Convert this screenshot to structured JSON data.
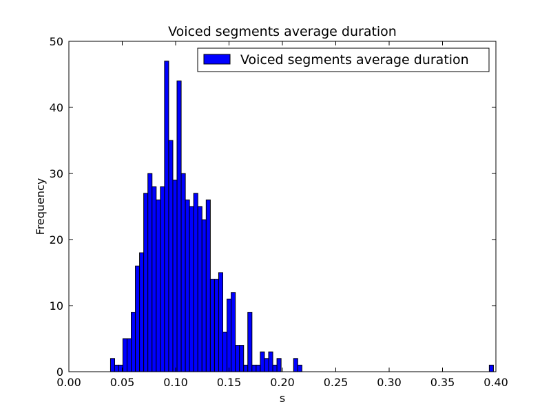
{
  "chart_data": {
    "type": "bar",
    "title": "Voiced segments average duration",
    "xlabel": "s",
    "ylabel": "Frequency",
    "xlim": [
      0.0,
      0.4
    ],
    "ylim": [
      0,
      50
    ],
    "x_ticks": [
      "0.00",
      "0.05",
      "0.10",
      "0.15",
      "0.20",
      "0.25",
      "0.30",
      "0.35",
      "0.40"
    ],
    "y_ticks": [
      "0",
      "10",
      "20",
      "30",
      "40",
      "50"
    ],
    "grid": false,
    "legend_position": "top-right",
    "bar_color": "#0000ff",
    "series": [
      {
        "name": "Voiced segments average duration",
        "bin_edges": [
          0.039,
          0.0428,
          0.0467,
          0.0506,
          0.0545,
          0.0584,
          0.0623,
          0.0662,
          0.0701,
          0.074,
          0.0779,
          0.0818,
          0.0857,
          0.0896,
          0.0935,
          0.0974,
          0.1013,
          0.1052,
          0.1091,
          0.113,
          0.1169,
          0.1208,
          0.1247,
          0.1286,
          0.1325,
          0.1364,
          0.1403,
          0.1442,
          0.1481,
          0.152,
          0.1559,
          0.1598,
          0.1637,
          0.1676,
          0.1715,
          0.1754,
          0.1793,
          0.1832,
          0.1871,
          0.191,
          0.1949,
          0.1988,
          0.2027,
          0.2066,
          0.2105,
          0.2144,
          0.2183,
          0.2222,
          0.2261,
          0.23,
          0.2339,
          0.2378,
          0.2417,
          0.2456,
          0.2495,
          0.2534,
          0.2573,
          0.2612,
          0.2651,
          0.269,
          0.2729,
          0.2768,
          0.2807,
          0.2846,
          0.2885,
          0.2924,
          0.2963,
          0.3002,
          0.3041,
          0.308,
          0.3119,
          0.3158,
          0.3197,
          0.3236,
          0.3275,
          0.3314,
          0.3353,
          0.3392,
          0.3431,
          0.347,
          0.3509,
          0.3548,
          0.3587,
          0.3626,
          0.3665,
          0.3704,
          0.3743,
          0.3782,
          0.3821,
          0.386,
          0.3899,
          0.3938,
          0.3977
        ],
        "counts": [
          2,
          1,
          1,
          5,
          5,
          9,
          16,
          18,
          27,
          30,
          28,
          26,
          28,
          47,
          35,
          29,
          44,
          30,
          26,
          25,
          27,
          25,
          23,
          26,
          14,
          14,
          15,
          6,
          11,
          12,
          4,
          4,
          1,
          9,
          1,
          1,
          3,
          2,
          3,
          1,
          2,
          0,
          0,
          0,
          2,
          1,
          0,
          0,
          0,
          0,
          0,
          0,
          0,
          0,
          0,
          0,
          0,
          0,
          0,
          0,
          0,
          0,
          0,
          0,
          0,
          0,
          0,
          0,
          0,
          0,
          0,
          0,
          0,
          0,
          0,
          0,
          0,
          0,
          0,
          0,
          0,
          0,
          0,
          0,
          0,
          0,
          0,
          0,
          0,
          0,
          0,
          1
        ]
      }
    ]
  }
}
